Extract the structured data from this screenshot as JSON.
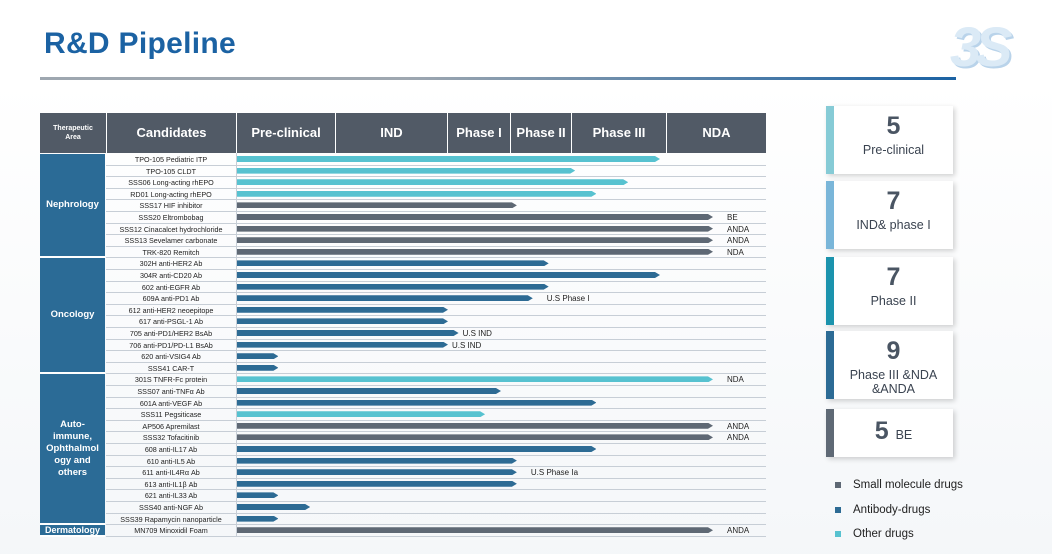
{
  "title": "R&D Pipeline",
  "logo": "3S",
  "colors": {
    "small_molecule": "#5e6874",
    "antibody": "#2d6b94",
    "other": "#57c2d0"
  },
  "table": {
    "headers": [
      "Therapeutic Area",
      "Candidates",
      "Pre-clinical",
      "IND",
      "Phase I",
      "Phase II",
      "Phase III",
      "NDA"
    ],
    "areas": [
      {
        "label": "Nephrology",
        "rows": 9
      },
      {
        "label": "Oncology",
        "rows": 10
      },
      {
        "label": "Auto-immune, Ophthalmology and others",
        "label_display": [
          "Auto-",
          "immune,",
          "Ophthalmol",
          "ogy and",
          "others"
        ],
        "rows": 13
      },
      {
        "label": "Dermatology",
        "rows": 1
      }
    ],
    "rows": [
      {
        "candidate": "TPO-105 Pediatric ITP",
        "type": "other",
        "end": 0.8,
        "note": ""
      },
      {
        "candidate": "TPO-105 CLDT",
        "type": "other",
        "end": 0.64,
        "note": ""
      },
      {
        "candidate": "SSS06 Long-acting rhEPO",
        "type": "other",
        "end": 0.74,
        "note": ""
      },
      {
        "candidate": "RD01 Long-acting rhEPO",
        "type": "other",
        "end": 0.68,
        "note": ""
      },
      {
        "candidate": "SSS17 HIF inhibitor",
        "type": "small_molecule",
        "end": 0.53,
        "note": ""
      },
      {
        "candidate": "SSS20 Eltrombobag",
        "type": "small_molecule",
        "end": 0.9,
        "note": "BE"
      },
      {
        "candidate": "SSS12 Cinacalcet hydrochloride",
        "type": "small_molecule",
        "end": 0.9,
        "note": "ANDA"
      },
      {
        "candidate": "SSS13 Sevelamer carbonate",
        "type": "small_molecule",
        "end": 0.9,
        "note": "ANDA"
      },
      {
        "candidate": "TRK-820 Remitch",
        "type": "small_molecule",
        "end": 0.9,
        "note": "NDA"
      },
      {
        "candidate": "302H anti-HER2 Ab",
        "type": "antibody",
        "end": 0.59,
        "note": ""
      },
      {
        "candidate": "304R anti-CD20 Ab",
        "type": "antibody",
        "end": 0.8,
        "note": ""
      },
      {
        "candidate": "602 anti-EGFR Ab",
        "type": "antibody",
        "end": 0.59,
        "note": ""
      },
      {
        "candidate": "609A anti-PD1 Ab",
        "type": "antibody",
        "end": 0.56,
        "note": "U.S Phase I"
      },
      {
        "candidate": "612 anti-HER2 neoepitope",
        "type": "antibody",
        "end": 0.4,
        "note": ""
      },
      {
        "candidate": "617 anti-PSGL-1 Ab",
        "type": "antibody",
        "end": 0.4,
        "note": ""
      },
      {
        "candidate": "705  anti-PD1/HER2 BsAb",
        "type": "antibody",
        "end": 0.42,
        "note": "U.S IND"
      },
      {
        "candidate": "706  anti-PD1/PD-L1 BsAb",
        "type": "antibody",
        "end": 0.4,
        "note": "U.S IND"
      },
      {
        "candidate": "620 anti-VSIG4 Ab",
        "type": "antibody",
        "end": 0.08,
        "note": ""
      },
      {
        "candidate": "SSS41 CAR-T",
        "type": "antibody",
        "end": 0.08,
        "note": ""
      },
      {
        "candidate": "301S TNFR-Fc protein",
        "type": "other",
        "end": 0.9,
        "note": "NDA"
      },
      {
        "candidate": "SSS07 anti-TNFα Ab",
        "type": "antibody",
        "end": 0.5,
        "note": ""
      },
      {
        "candidate": "601A anti-VEGF Ab",
        "type": "antibody",
        "end": 0.68,
        "note": ""
      },
      {
        "candidate": "SSS11 Pegsiticase",
        "type": "other",
        "end": 0.47,
        "note": ""
      },
      {
        "candidate": "AP506 Apremilast",
        "type": "small_molecule",
        "end": 0.9,
        "note": "ANDA"
      },
      {
        "candidate": "SSS32 Tofacitinib",
        "type": "small_molecule",
        "end": 0.9,
        "note": "ANDA"
      },
      {
        "candidate": "608 anti-IL17 Ab",
        "type": "antibody",
        "end": 0.68,
        "note": ""
      },
      {
        "candidate": "610 anti-IL5 Ab",
        "type": "antibody",
        "end": 0.53,
        "note": ""
      },
      {
        "candidate": "611 anti-IL4Rα Ab",
        "type": "antibody",
        "end": 0.53,
        "note": "U.S Phase Ia"
      },
      {
        "candidate": "613 anti-IL1β Ab",
        "type": "antibody",
        "end": 0.53,
        "note": ""
      },
      {
        "candidate": "621 anti-IL33 Ab",
        "type": "antibody",
        "end": 0.08,
        "note": ""
      },
      {
        "candidate": "SSS40 anti-NGF Ab",
        "type": "antibody",
        "end": 0.14,
        "note": ""
      },
      {
        "candidate": "SSS39 Rapamycin nanoparticle",
        "type": "antibody",
        "end": 0.08,
        "note": ""
      },
      {
        "candidate": "MN709 Minoxidil Foam",
        "type": "small_molecule",
        "end": 0.9,
        "note": "ANDA"
      }
    ]
  },
  "cards": [
    {
      "number": "5",
      "label": "Pre-clinical",
      "accent": "#86cbd6"
    },
    {
      "number": "7",
      "label": "IND& phase I",
      "accent": "#7ab6d9"
    },
    {
      "number": "7",
      "label": "Phase II",
      "accent": "#1b93ad"
    },
    {
      "number": "9",
      "label": "Phase III &NDA &ANDA",
      "label_lines": [
        "Phase III &NDA",
        "&ANDA"
      ],
      "accent": "#2c6b95"
    },
    {
      "number": "5",
      "label": "BE",
      "accent": "#5f6975"
    }
  ],
  "legend": [
    {
      "label": "Small molecule drugs",
      "type": "small_molecule"
    },
    {
      "label": "Antibody-drugs",
      "type": "antibody"
    },
    {
      "label": "Other drugs",
      "type": "other"
    }
  ]
}
